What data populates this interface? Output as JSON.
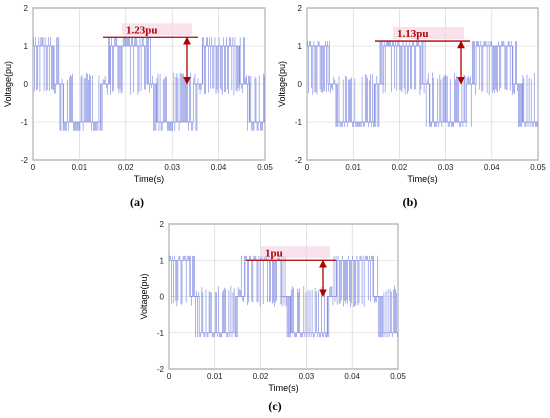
{
  "chart_data": [
    {
      "type": "line",
      "panel_label": "(a)",
      "xlabel": "Time(s)",
      "ylabel": "Voltage(pu)",
      "xlim": [
        0,
        0.05
      ],
      "ylim": [
        -2,
        2
      ],
      "xticks": [
        "0",
        "0.01",
        "0.02",
        "0.03",
        "0.04",
        "0.05"
      ],
      "yticks": [
        "-2",
        "-1",
        "0",
        "1",
        "2"
      ],
      "grid": true,
      "series_color": "#7a86e0",
      "annotation": {
        "text": "1.23pu",
        "value": 1.23,
        "color": "#b00000"
      },
      "waveform": {
        "positive_level": 1.0,
        "negative_level": -1.0,
        "spike_peak": 1.23,
        "fundamental_period": 0.02
      }
    },
    {
      "type": "line",
      "panel_label": "(b)",
      "xlabel": "Time(s)",
      "ylabel": "Voltage(pu)",
      "xlim": [
        0,
        0.05
      ],
      "ylim": [
        -2,
        2
      ],
      "xticks": [
        "0",
        "0.01",
        "0.02",
        "0.03",
        "0.04",
        "0.05"
      ],
      "yticks": [
        "-2",
        "-1",
        "0",
        "1",
        "2"
      ],
      "grid": true,
      "series_color": "#7a86e0",
      "annotation": {
        "text": "1.13pu",
        "value": 1.13,
        "color": "#b00000"
      },
      "waveform": {
        "positive_level": 1.0,
        "negative_level": -1.0,
        "spike_peak": 1.13,
        "fundamental_period": 0.02
      }
    },
    {
      "type": "line",
      "panel_label": "(c)",
      "xlabel": "Time(s)",
      "ylabel": "Voltage(pu)",
      "xlim": [
        0,
        0.05
      ],
      "ylim": [
        -2,
        2
      ],
      "xticks": [
        "0",
        "0.01",
        "0.02",
        "0.03",
        "0.04",
        "0.05"
      ],
      "yticks": [
        "-2",
        "-1",
        "0",
        "1",
        "2"
      ],
      "grid": true,
      "series_color": "#7a86e0",
      "annotation": {
        "text": "1pu",
        "value": 1.0,
        "color": "#b00000"
      },
      "waveform": {
        "positive_level": 1.0,
        "negative_level": -1.0,
        "spike_peak": 1.0,
        "fundamental_period": 0.02
      }
    }
  ]
}
